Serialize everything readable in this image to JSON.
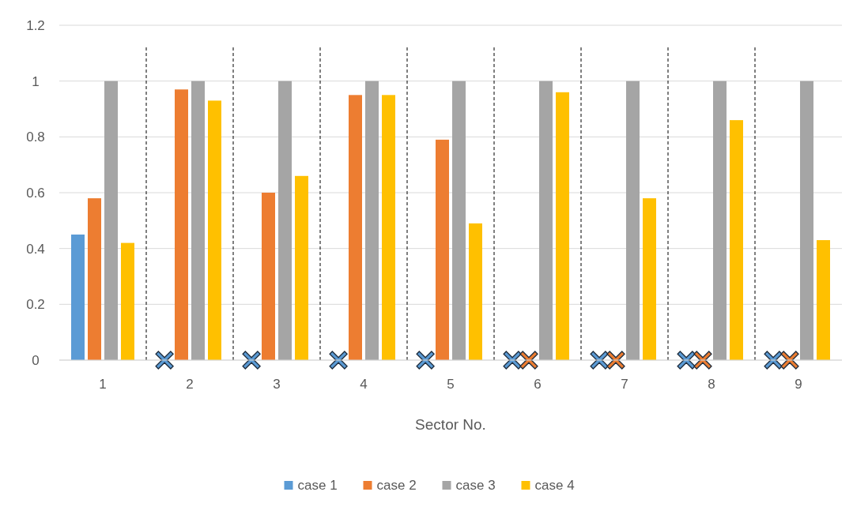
{
  "chart_data": {
    "type": "bar",
    "xlabel": "Sector No.",
    "x": [
      1,
      2,
      3,
      4,
      5,
      6,
      7,
      8,
      9
    ],
    "xlim": [
      0.5,
      9.5
    ],
    "xticks": [
      1,
      2,
      3,
      4,
      5,
      6,
      7,
      8,
      9
    ],
    "ylim": [
      0,
      1.2
    ],
    "yticks": [
      0,
      0.2,
      0.4,
      0.6,
      0.8,
      1,
      1.2
    ],
    "grid": "y",
    "legend": "bottom",
    "series": [
      {
        "name": "case 1",
        "color": "#5b9bd5",
        "values": [
          0.45,
          null,
          null,
          null,
          null,
          null,
          null,
          null,
          null
        ]
      },
      {
        "name": "case 2",
        "color": "#ed7d31",
        "values": [
          0.58,
          0.97,
          0.6,
          0.95,
          0.79,
          null,
          null,
          null,
          null
        ]
      },
      {
        "name": "case 3",
        "color": "#a5a5a5",
        "values": [
          1,
          1,
          1,
          1,
          1,
          1,
          1,
          1,
          1
        ]
      },
      {
        "name": "case 4",
        "color": "#ffc000",
        "values": [
          0.42,
          0.93,
          0.66,
          0.95,
          0.49,
          0.96,
          0.58,
          0.86,
          0.43
        ]
      },
      {
        "type": "scatter",
        "marker": "cross",
        "color": "#5b9bd5",
        "x": [
          1.71,
          2.71,
          3.71,
          4.71,
          5.71,
          6.71,
          7.71,
          8.71
        ],
        "values": [
          0,
          0,
          0,
          0,
          0,
          0,
          0,
          0
        ]
      },
      {
        "type": "scatter",
        "marker": "cross",
        "color": "#ed7d31",
        "x": [
          5.9,
          6.9,
          7.9,
          8.9
        ],
        "values": [
          0,
          0,
          0,
          0
        ]
      }
    ],
    "ref_lines": [
      {
        "axis": "x",
        "value": 1.5,
        "line_style": "dashed",
        "color": "#000000"
      },
      {
        "axis": "x",
        "value": 2.5,
        "line_style": "dashed",
        "color": "#000000"
      },
      {
        "axis": "x",
        "value": 3.5,
        "line_style": "dashed",
        "color": "#000000"
      },
      {
        "axis": "x",
        "value": 4.5,
        "line_style": "dashed",
        "color": "#000000"
      },
      {
        "axis": "x",
        "value": 5.5,
        "line_style": "dashed",
        "color": "#000000"
      },
      {
        "axis": "x",
        "value": 6.5,
        "line_style": "dashed",
        "color": "#000000"
      },
      {
        "axis": "x",
        "value": 7.5,
        "line_style": "dashed",
        "color": "#000000"
      },
      {
        "axis": "x",
        "value": 8.5,
        "line_style": "dashed",
        "color": "#000000"
      }
    ]
  }
}
